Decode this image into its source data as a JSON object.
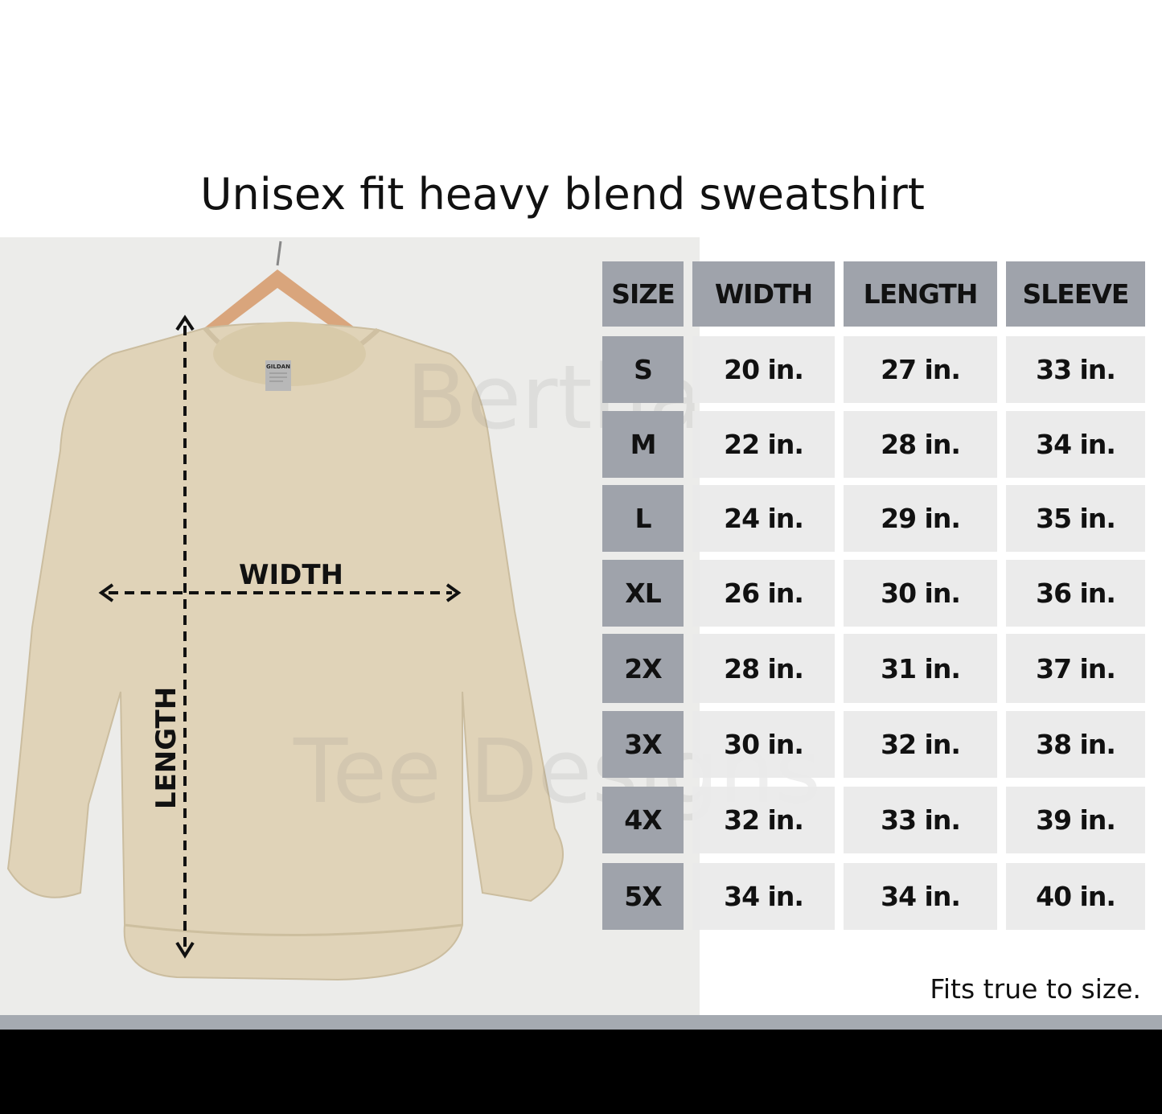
{
  "title": "Unisex fit heavy blend sweatshirt",
  "diagram": {
    "width_label": "WIDTH",
    "length_label": "LENGTH",
    "tag_text": "GILDAN"
  },
  "watermark": {
    "line1": "Bertha",
    "line2": "Tee Designs"
  },
  "table": {
    "headers": [
      "SIZE",
      "WIDTH",
      "LENGTH",
      "SLEEVE"
    ],
    "rows": [
      [
        "S",
        "20 in.",
        "27 in.",
        "33 in."
      ],
      [
        "M",
        "22 in.",
        "28 in.",
        "34 in."
      ],
      [
        "L",
        "24 in.",
        "29 in.",
        "35 in."
      ],
      [
        "XL",
        "26 in.",
        "30 in.",
        "36 in."
      ],
      [
        "2X",
        "28 in.",
        "31 in.",
        "37 in."
      ],
      [
        "3X",
        "30 in.",
        "32 in.",
        "38 in."
      ],
      [
        "4X",
        "32 in.",
        "33 in.",
        "39 in."
      ],
      [
        "5X",
        "34 in.",
        "34 in.",
        "40 in."
      ]
    ]
  },
  "footnote": "Fits true to size.",
  "colors": {
    "header_bg": "#9fa3ab",
    "cell_bg": "#eaeaea",
    "garment": "#e0d3b8",
    "bottom_bar": "#a5aab1"
  }
}
